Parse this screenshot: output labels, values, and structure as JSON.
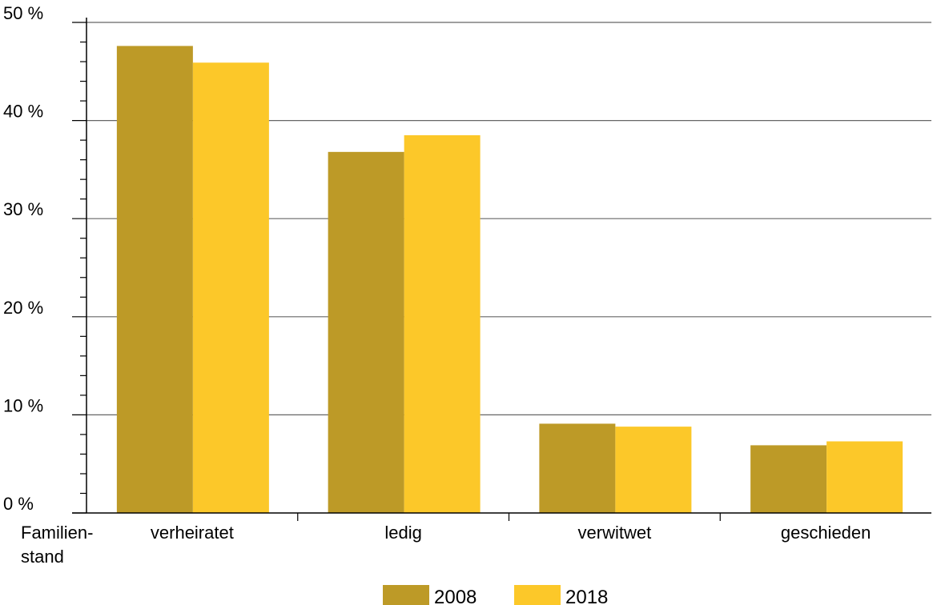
{
  "chart_data": {
    "type": "bar",
    "xlabel": "Familien-\nstand",
    "ylabel": "",
    "categories": [
      "verheiratet",
      "ledig",
      "verwitwet",
      "geschieden"
    ],
    "series": [
      {
        "name": "2008",
        "color": "#bd9a27",
        "values": [
          47.6,
          36.8,
          9.1,
          6.9
        ]
      },
      {
        "name": "2018",
        "color": "#fcc829",
        "values": [
          45.9,
          38.5,
          8.8,
          7.3
        ]
      }
    ],
    "ylim": [
      0,
      50
    ],
    "yticks": [
      0,
      10,
      20,
      30,
      40,
      50
    ],
    "ytick_labels": [
      "0 %",
      "10 %",
      "20 %",
      "30 %",
      "40 %",
      "50 %"
    ],
    "grid": true,
    "legend_position": "bottom-center"
  }
}
